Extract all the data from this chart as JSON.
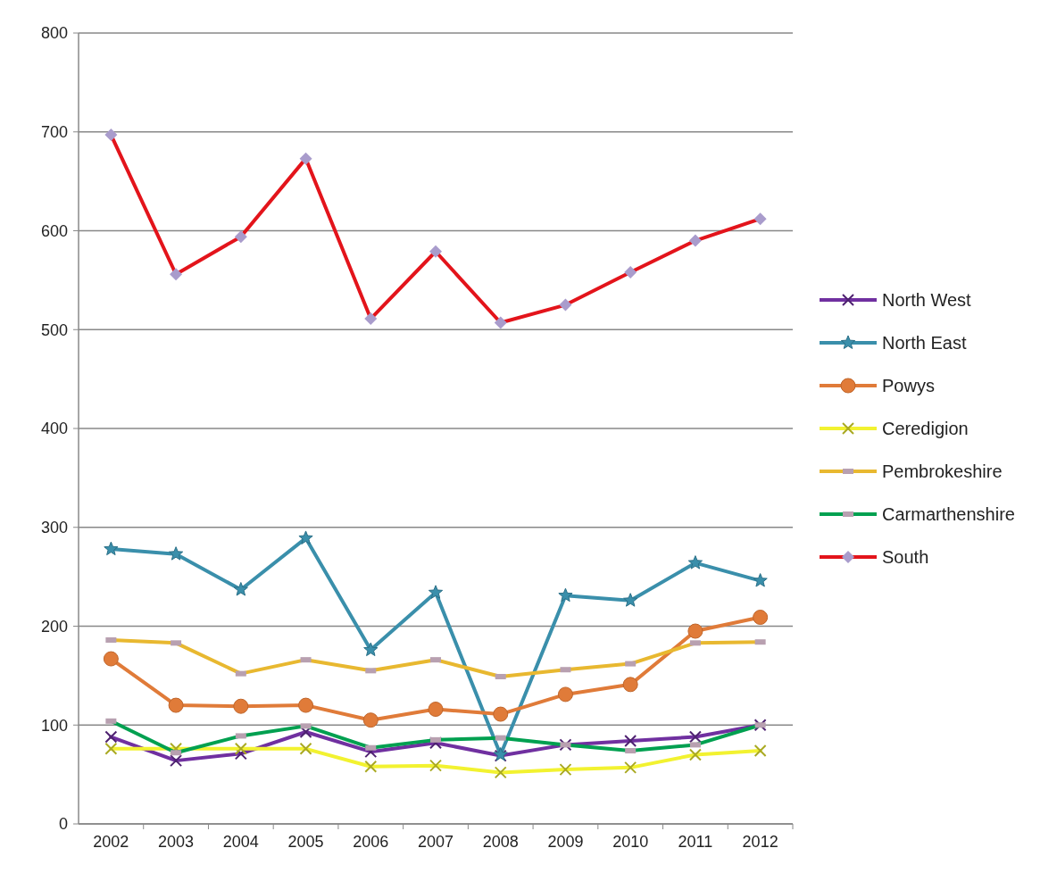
{
  "chart_data": {
    "type": "line",
    "categories": [
      "2002",
      "2003",
      "2004",
      "2005",
      "2006",
      "2007",
      "2008",
      "2009",
      "2010",
      "2011",
      "2012"
    ],
    "ylim": [
      0,
      800
    ],
    "yticks": [
      0,
      100,
      200,
      300,
      400,
      500,
      600,
      700,
      800
    ],
    "grid": "y",
    "legend": "right",
    "series": [
      {
        "name": "North West",
        "color": "#7030a0",
        "marker": "cross",
        "values": [
          88,
          64,
          71,
          93,
          73,
          82,
          69,
          80,
          84,
          88,
          100
        ]
      },
      {
        "name": "North East",
        "color": "#3a8fab",
        "marker": "star",
        "values": [
          278,
          273,
          237,
          289,
          176,
          234,
          70,
          231,
          226,
          264,
          246
        ]
      },
      {
        "name": "Powys",
        "color": "#e07b39",
        "marker": "circle",
        "values": [
          167,
          120,
          119,
          120,
          105,
          116,
          111,
          131,
          141,
          195,
          209
        ]
      },
      {
        "name": "Ceredigion",
        "color": "#f2f230",
        "marker": "cross",
        "values": [
          76,
          76,
          76,
          76,
          58,
          59,
          52,
          55,
          57,
          70,
          74
        ]
      },
      {
        "name": "Pembrokeshire",
        "color": "#e8b830",
        "marker": "square",
        "values": [
          186,
          183,
          152,
          166,
          155,
          166,
          149,
          156,
          162,
          183,
          184
        ]
      },
      {
        "name": "Carmarthenshire",
        "color": "#00a050",
        "marker": "square",
        "values": [
          104,
          72,
          89,
          99,
          77,
          85,
          87,
          80,
          74,
          80,
          100
        ]
      },
      {
        "name": "South",
        "color": "#e3141b",
        "marker": "diamond",
        "values": [
          697,
          556,
          594,
          673,
          511,
          579,
          507,
          525,
          558,
          590,
          612
        ]
      }
    ]
  }
}
